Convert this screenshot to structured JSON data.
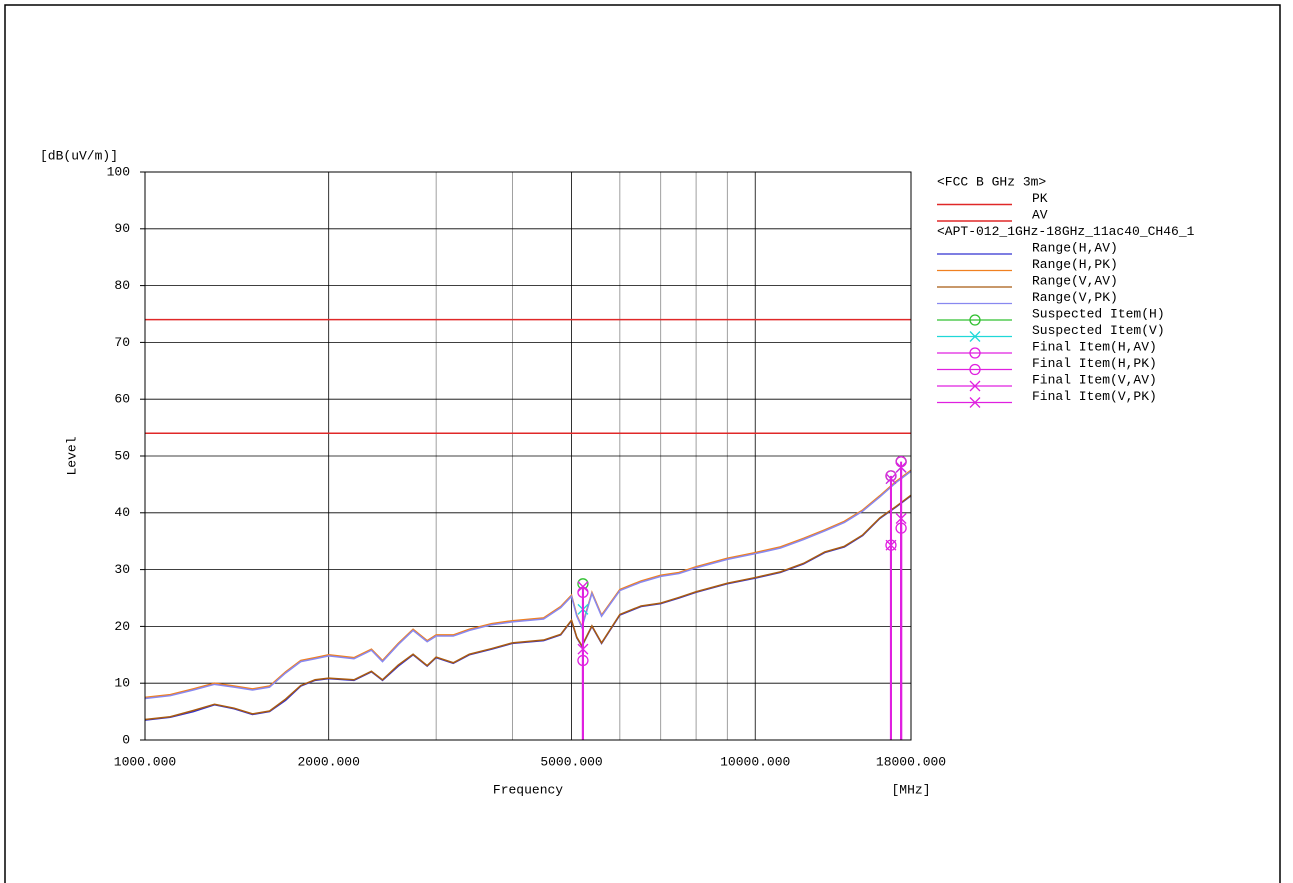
{
  "chart_data": {
    "type": "line",
    "y_unit": "[dB(uV/m)]",
    "y_label": "Level",
    "x_label": "Frequency",
    "x_unit": "[MHz]",
    "xscale": "log",
    "xlim": [
      1000,
      18000
    ],
    "ylim": [
      0,
      100
    ],
    "xticks": [
      {
        "value": 1000,
        "label": "1000.000"
      },
      {
        "value": 2000,
        "label": "2000.000"
      },
      {
        "value": 5000,
        "label": "5000.000"
      },
      {
        "value": 10000,
        "label": "10000.000"
      },
      {
        "value": 18000,
        "label": "18000.000"
      }
    ],
    "xgrid_minor": [
      3000,
      4000,
      6000,
      7000,
      8000,
      9000
    ],
    "yticks": [
      0,
      10,
      20,
      30,
      40,
      50,
      60,
      70,
      80,
      90,
      100
    ],
    "grid": true,
    "legend_groups": [
      "<FCC B GHz 3m>",
      "<APT-012_1GHz-18GHz_11ac40_CH46_1"
    ],
    "limits": [
      {
        "name": "PK",
        "value": 74,
        "color": "#e02828"
      },
      {
        "name": "AV",
        "value": 54,
        "color": "#e02828"
      }
    ],
    "x": [
      1000,
      1100,
      1200,
      1300,
      1400,
      1500,
      1600,
      1700,
      1800,
      1900,
      2000,
      2200,
      2350,
      2450,
      2600,
      2750,
      2900,
      3000,
      3200,
      3400,
      3700,
      4000,
      4500,
      4800,
      5000,
      5100,
      5200,
      5400,
      5600,
      6000,
      6500,
      7000,
      7500,
      8000,
      9000,
      10000,
      11000,
      12000,
      13000,
      14000,
      15000,
      16000,
      17000,
      18000
    ],
    "series": [
      {
        "name": "Range(H,AV)",
        "color": "#3030d0",
        "values": [
          3.5,
          4,
          5,
          6.2,
          5.5,
          4.5,
          5,
          7,
          9.5,
          10.5,
          10.8,
          10.5,
          12,
          10.5,
          13,
          15,
          13,
          14.5,
          13.5,
          15,
          16,
          17,
          17.5,
          18.5,
          21,
          18,
          16.5,
          20,
          17,
          22,
          23.5,
          24,
          25,
          26,
          27.5,
          28.5,
          29.5,
          31,
          33,
          34,
          36,
          39,
          41,
          43
        ]
      },
      {
        "name": "Range(H,PK)",
        "color": "#f08020",
        "values": [
          7.5,
          8,
          9,
          10,
          9.5,
          9,
          9.5,
          12,
          14,
          14.5,
          15,
          14.5,
          16,
          14,
          17,
          19.5,
          17.5,
          18.5,
          18.5,
          19.5,
          20.5,
          21,
          21.5,
          23.5,
          25.5,
          22,
          20,
          26,
          22,
          26.5,
          28,
          29,
          29.5,
          30.5,
          32,
          33,
          34,
          35.5,
          37,
          38.5,
          40.5,
          43,
          45.5,
          47.5
        ]
      },
      {
        "name": "Range(V,AV)",
        "color": "#a85a10",
        "values": [
          3.6,
          4.1,
          5.2,
          6.3,
          5.6,
          4.6,
          5.1,
          7.2,
          9.6,
          10.6,
          10.9,
          10.6,
          12.1,
          10.6,
          13.2,
          15.1,
          13.1,
          14.6,
          13.6,
          15.1,
          16.1,
          17.1,
          17.6,
          18.6,
          21.1,
          18.1,
          16.6,
          20.1,
          17.1,
          22.1,
          23.6,
          24.1,
          25.1,
          26.1,
          27.6,
          28.6,
          29.6,
          31.1,
          33.1,
          34.1,
          36.1,
          39.1,
          41.1,
          43.1
        ]
      },
      {
        "name": "Range(V,PK)",
        "color": "#8888f0",
        "values": [
          7.3,
          7.8,
          8.8,
          9.8,
          9.3,
          8.8,
          9.3,
          11.8,
          13.8,
          14.3,
          14.8,
          14.3,
          15.8,
          13.8,
          16.8,
          19.3,
          17.3,
          18.3,
          18.3,
          19.3,
          20.3,
          20.8,
          21.3,
          23.3,
          25.3,
          21.8,
          19.8,
          25.8,
          21.8,
          26.3,
          27.8,
          28.8,
          29.3,
          30.3,
          31.8,
          32.8,
          33.8,
          35.3,
          36.8,
          38.3,
          40.3,
          42.8,
          45.3,
          47.3
        ]
      }
    ],
    "markers": [
      {
        "name": "Suspected Item(H)",
        "color": "#30c030",
        "symbol": "circle",
        "stem": false,
        "x": [
          5220,
          16690,
          17340
        ],
        "values": [
          27.5,
          46.5,
          49
        ]
      },
      {
        "name": "Suspected Item(V)",
        "color": "#20d8d8",
        "symbol": "x",
        "stem": false,
        "x": [
          5220,
          16690,
          17340
        ],
        "values": [
          23,
          46,
          48
        ]
      },
      {
        "name": "Final Item(H,AV)",
        "color": "#e020e0",
        "symbol": "circle",
        "stem": true,
        "x": [
          5220,
          16690,
          17340
        ],
        "values": [
          14,
          34.3,
          37.3
        ]
      },
      {
        "name": "Final Item(H,PK)",
        "color": "#e020e0",
        "symbol": "circle",
        "stem": true,
        "x": [
          5220,
          16690,
          17340
        ],
        "values": [
          26,
          46.5,
          49
        ]
      },
      {
        "name": "Final Item(V,AV)",
        "color": "#e020e0",
        "symbol": "x",
        "stem": true,
        "x": [
          5220,
          16690,
          17340
        ],
        "values": [
          16,
          34.3,
          39
        ]
      },
      {
        "name": "Final Item(V,PK)",
        "color": "#e020e0",
        "symbol": "x",
        "stem": true,
        "x": [
          5220,
          16690,
          17340
        ],
        "values": [
          27,
          46,
          48
        ]
      }
    ]
  }
}
